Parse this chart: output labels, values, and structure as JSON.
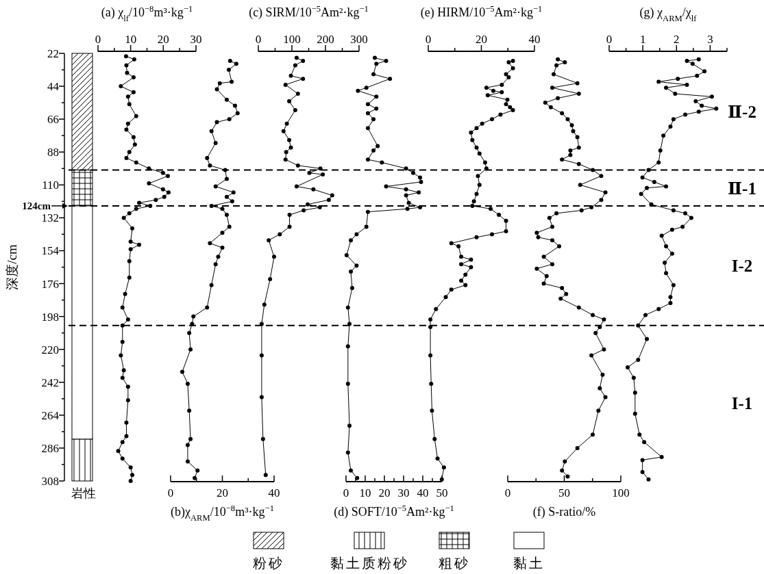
{
  "chart_data": [
    {
      "type": "bar",
      "categories": [
        null
      ],
      "tick_labels": "y",
      "xlabel": "岩性",
      "ylabel": "深度/cm",
      "ylim": [
        308,
        22
      ],
      "yticks": [
        22,
        44,
        66,
        88,
        110,
        132,
        154,
        176,
        198,
        220,
        242,
        264,
        286,
        308,
        {
          "value": 33,
          "label": null
        },
        {
          "value": 55,
          "label": null
        },
        {
          "value": 77,
          "label": null
        },
        {
          "value": 99,
          "label": null
        },
        {
          "value": 121,
          "label": null
        },
        {
          "value": 143,
          "label": null
        },
        {
          "value": 165,
          "label": null
        },
        {
          "value": 187,
          "label": null
        },
        {
          "value": 209,
          "label": null
        },
        {
          "value": 231,
          "label": null
        },
        {
          "value": 253,
          "label": null
        },
        {
          "value": 275,
          "label": null
        },
        {
          "value": 297,
          "label": null
        }
      ],
      "series": [
        {
          "name": "粉砂",
          "color": "#000000",
          "base": [
            22
          ],
          "values": [
            78
          ]
        },
        {
          "name": "黏土质粉砂",
          "color": "#000000",
          "base": [
            280
          ],
          "values": [
            28
          ]
        },
        {
          "name": "粗砂",
          "color": "#000000",
          "base": [
            100
          ],
          "values": [
            24
          ]
        },
        {
          "name": "黏土",
          "color": "#000000",
          "base": [
            124
          ],
          "values": [
            156
          ]
        }
      ],
      "legend": "bottom",
      "ref_lines": [
        {
          "axis": "y",
          "value": 100,
          "line_style": "dashed"
        },
        {
          "axis": "y",
          "value": 124,
          "label": "124cm",
          "line_style": "dashed"
        },
        {
          "axis": "y",
          "value": 204,
          "line_style": "dashed"
        }
      ],
      "annotations": [
        "Ⅱ-2",
        "Ⅱ-1",
        "I-2",
        "I-1"
      ]
    },
    {
      "type": "line",
      "xlabel": "(a) χ$_{lf}$/10$^{−8}$m³·kg$^{−1}$",
      "xlim": [
        0,
        30
      ],
      "xticks": [
        0,
        10,
        20,
        30,
        {
          "value": 5,
          "label": null
        },
        {
          "value": 15,
          "label": null
        },
        {
          "value": 25,
          "label": null
        }
      ],
      "ylim": [
        308,
        22
      ],
      "tick_labels": "x",
      "marker": "circle",
      "line_style": "solid",
      "series": [
        {
          "color": "#000000",
          "x": [
            8.6,
            11.1,
            8.7,
            8.9,
            10.9,
            7.0,
            10.9,
            9.2,
            9.6,
            11.7,
            9.2,
            8.7,
            10.9,
            11.3,
            9.6,
            8.7,
            11.7,
            15.6,
            19.9,
            21.4,
            15.6,
            19.9,
            21.6,
            20.3,
            17.7,
            12.6,
            16.0,
            11.7,
            9.6,
            7.9,
            10.5,
            10.0,
            12.6,
            10.0,
            9.6,
            9.6,
            8.3,
            7.5,
            9.2,
            7.5,
            7.5,
            7.0,
            7.9,
            7.5,
            9.2,
            9.2,
            8.7,
            8.7,
            7.5,
            6.2,
            7.5,
            10.0,
            10.5,
            10.0
          ],
          "values": [
            24,
            26,
            30,
            35,
            38,
            44,
            48,
            51,
            56,
            64,
            69,
            73,
            78,
            83,
            88,
            92,
            95,
            99,
            102,
            104,
            109,
            113,
            115,
            118,
            120,
            122,
            124,
            126,
            129,
            132,
            139,
            148,
            150,
            153,
            161,
            172,
            183,
            192,
            200,
            204,
            215,
            224,
            234,
            239,
            245,
            254,
            269,
            278,
            282,
            288,
            293,
            299,
            304,
            308
          ]
        }
      ]
    },
    {
      "type": "line",
      "xlabel": "(b)χ$_{ARM}$/10$^{−8}$m³·kg$^{−1}$",
      "xlim": [
        0,
        40
      ],
      "xticks": [
        0,
        20,
        40,
        {
          "value": 10,
          "label": null
        },
        {
          "value": 30,
          "label": null
        }
      ],
      "ylim": [
        308,
        22
      ],
      "tick_labels": "x",
      "marker": "circle",
      "line_style": "solid",
      "series": [
        {
          "color": "#000000",
          "x": [
            23.0,
            25.4,
            22.5,
            23.6,
            19.0,
            17.9,
            21.7,
            24.9,
            25.9,
            22.7,
            17.9,
            15.8,
            17.4,
            14.1,
            15.2,
            21.1,
            21.7,
            17.4,
            24.3,
            21.7,
            23.8,
            15.8,
            20.0,
            21.7,
            22.7,
            20.0,
            15.2,
            20.0,
            18.4,
            17.4,
            15.8,
            14.1,
            8.8,
            8.3,
            7.2,
            7.7,
            4.5,
            6.6,
            7.2,
            7.7,
            6.6,
            6.6,
            10.4,
            9.3
          ],
          "values": [
            27,
            29,
            33,
            41,
            42,
            46,
            53,
            57,
            62,
            66,
            68,
            74,
            82,
            92,
            97,
            100,
            106,
            111,
            115,
            118,
            121,
            124,
            126,
            130,
            138,
            142,
            149,
            152,
            158,
            163,
            177,
            192,
            198,
            203,
            209,
            220,
            235,
            243,
            261,
            280,
            284,
            295,
            301,
            306
          ]
        }
      ]
    },
    {
      "type": "line",
      "xlabel": "(c) SIRM/10$^{−5}$Am²·kg$^{−1}$",
      "xlim": [
        0,
        300
      ],
      "xticks": [
        0,
        100,
        200,
        300,
        {
          "value": 50,
          "label": null
        },
        {
          "value": 150,
          "label": null
        },
        {
          "value": 250,
          "label": null
        }
      ],
      "ylim": [
        308,
        22
      ],
      "tick_labels": "x",
      "marker": "circle",
      "line_style": "solid",
      "series": [
        {
          "color": "#000000",
          "x": [
            114,
            133,
            110,
            97,
            133,
            81,
            118,
            92,
            110,
            85,
            75,
            92,
            97,
            83,
            81,
            118,
            185,
            152,
            192,
            114,
            164,
            220,
            210,
            147,
            183,
            135,
            93,
            93,
            64,
            31,
            47,
            35,
            18,
            10,
            10,
            10,
            14,
            22
          ],
          "values": [
            25,
            27,
            30,
            37,
            39,
            43,
            49,
            54,
            60,
            69,
            74,
            80,
            85,
            88,
            93,
            97,
            99,
            102,
            103,
            111,
            113,
            117,
            120,
            123,
            125,
            127,
            130,
            138,
            143,
            147,
            158,
            173,
            190,
            203,
            224,
            252,
            280,
            304
          ]
        }
      ]
    },
    {
      "type": "line",
      "xlabel": "(d) SOFT/10$^{−5}$Am²·kg$^{−1}$",
      "xlim": [
        0,
        50
      ],
      "xticks": [
        0,
        10,
        20,
        30,
        40,
        50,
        {
          "value": 5,
          "label": null
        },
        {
          "value": 15,
          "label": null
        },
        {
          "value": 25,
          "label": null
        },
        {
          "value": 35,
          "label": null
        },
        {
          "value": 45,
          "label": null
        }
      ],
      "ylim": [
        308,
        22
      ],
      "tick_labels": "x",
      "marker": "circle",
      "line_style": "solid",
      "series": [
        {
          "color": "#000000",
          "x": [
            15.0,
            20.9,
            15.8,
            14.3,
            22.9,
            10.6,
            6.2,
            15.8,
            11.4,
            15.8,
            11.4,
            14.3,
            11.4,
            16.5,
            14.3,
            11.4,
            18.7,
            31.3,
            35.0,
            38.6,
            39.1,
            20.9,
            31.3,
            37.9,
            31.3,
            32.7,
            38.6,
            32.0,
            11.4,
            10.6,
            5.5,
            2.5,
            0.3,
            5.5,
            2.5,
            3.2,
            1.0,
            1.8,
            1.0,
            1.0,
            1.8,
            1.0,
            2.5,
            5.8
          ],
          "values": [
            25,
            27,
            29,
            36,
            39,
            45,
            47,
            51,
            56,
            59,
            62,
            66,
            72,
            84,
            87,
            93,
            95,
            99,
            102,
            105,
            108,
            111,
            113,
            115,
            117,
            122,
            125,
            126,
            128,
            138,
            143,
            147,
            157,
            164,
            168,
            179,
            192,
            203,
            218,
            243,
            271,
            289,
            301,
            306
          ]
        }
      ]
    },
    {
      "type": "line",
      "xlabel": "(e) HIRM/10$^{−5}$Am²·kg$^{−1}$",
      "xlim": [
        0,
        40
      ],
      "xticks": [
        0,
        20,
        40,
        {
          "value": 10,
          "label": null
        },
        {
          "value": 30,
          "label": null
        }
      ],
      "ylim": [
        308,
        22
      ],
      "tick_labels": "x",
      "marker": "circle",
      "line_style": "solid",
      "series": [
        {
          "color": "#000000",
          "x": [
            31.9,
            30.3,
            31.9,
            29.3,
            30.3,
            27.7,
            21.9,
            24.5,
            27.7,
            22.4,
            29.8,
            29.3,
            30.8,
            31.9,
            27.2,
            24.0,
            20.3,
            18.2,
            16.1,
            16.6,
            18.2,
            19.3,
            21.4,
            21.9,
            18.7,
            19.3,
            18.2,
            17.2,
            16.6,
            23.5,
            26.6,
            29.3,
            29.3,
            24.0,
            18.2,
            8.7,
            11.4,
            12.4,
            16.1,
            12.4,
            16.1,
            14.0,
            12.4,
            14.0,
            8.7,
            6.6,
            2.9,
            0.8,
            0.8,
            0.8,
            1.1,
            1.4,
            2.4,
            3.5,
            5.9,
            5.1
          ],
          "values": [
            27,
            28,
            32,
            36,
            38,
            43,
            45,
            47,
            48,
            50,
            53,
            56,
            58,
            60,
            63,
            66,
            69,
            72,
            75,
            80,
            85,
            89,
            95,
            99,
            104,
            110,
            116,
            121,
            124,
            126,
            130,
            134,
            141,
            143,
            145,
            149,
            151,
            158,
            160,
            163,
            165,
            170,
            174,
            177,
            180,
            185,
            193,
            200,
            205,
            224,
            243,
            261,
            280,
            293,
            299,
            307
          ]
        }
      ]
    },
    {
      "type": "line",
      "xlabel": "(f) S-ratio/%",
      "xlim": [
        0,
        100
      ],
      "xticks": [
        0,
        50,
        100,
        {
          "value": 25,
          "label": null
        },
        {
          "value": 75,
          "label": null
        }
      ],
      "ylim": [
        308,
        22
      ],
      "tick_labels": "x",
      "marker": "circle",
      "line_style": "solid",
      "series": [
        {
          "color": "#000000",
          "x": [
            44.3,
            50.5,
            43.1,
            40.6,
            61.6,
            39.4,
            62.9,
            44.3,
            33.2,
            38.1,
            48.0,
            53.0,
            56.7,
            57.9,
            61.6,
            62.9,
            55.4,
            55.4,
            48.0,
            62.9,
            75.2,
            82.7,
            64.1,
            86.4,
            82.7,
            74.0,
            65.3,
            43.1,
            36.9,
            39.4,
            25.7,
            27.0,
            39.4,
            45.5,
            31.9,
            39.4,
            25.7,
            34.4,
            31.9,
            48.0,
            51.7,
            46.8,
            62.9,
            75.2,
            85.1,
            81.4,
            77.7,
            85.1,
            74.0,
            83.9,
            81.4,
            86.4,
            80.2,
            75.2,
            61.6,
            50.5,
            48.0,
            53.0
          ],
          "values": [
            26,
            28,
            30,
            36,
            42,
            45,
            49,
            52,
            55,
            58,
            62,
            66,
            70,
            74,
            78,
            85,
            87,
            90,
            93,
            96,
            100,
            104,
            110,
            115,
            120,
            125,
            127,
            129,
            132,
            138,
            142,
            145,
            147,
            151,
            158,
            163,
            166,
            171,
            176,
            179,
            183,
            186,
            192,
            197,
            200,
            205,
            209,
            220,
            224,
            237,
            246,
            252,
            261,
            277,
            286,
            295,
            301,
            305
          ]
        }
      ]
    },
    {
      "type": "line",
      "xlabel": "(g) χ$_{ARM}$/χ$_{lf}$",
      "xlim": [
        0,
        3.5
      ],
      "xticks": [
        0,
        1,
        2,
        3,
        {
          "value": 0.5,
          "label": null
        },
        {
          "value": 1.5,
          "label": null
        },
        {
          "value": 2.5,
          "label": null
        },
        {
          "value": 3.5,
          "label": null
        }
      ],
      "ylim": [
        308,
        22
      ],
      "tick_labels": "x",
      "marker": "circle",
      "line_style": "solid",
      "series": [
        {
          "color": "#000000",
          "x": [
            2.66,
            2.31,
            2.48,
            2.83,
            2.61,
            2.04,
            1.47,
            2.31,
            1.69,
            1.96,
            3.05,
            2.57,
            2.75,
            3.18,
            2.66,
            2.26,
            1.91,
            1.82,
            1.61,
            1.52,
            1.47,
            1.17,
            0.99,
            1.34,
            1.69,
            1.12,
            0.95,
            1.25,
            1.91,
            2.26,
            2.44,
            2.18,
            1.87,
            1.56,
            1.69,
            1.87,
            1.65,
            1.69,
            1.91,
            1.82,
            1.82,
            1.47,
            1.08,
            0.86,
            1.12,
            0.86,
            0.55,
            0.73,
            0.77,
            0.77,
            0.9,
            1.04,
            1.56,
            0.99,
            0.99,
            1.17
          ],
          "values": [
            26,
            27,
            29,
            34,
            37,
            39,
            41,
            43,
            45,
            49,
            51,
            54,
            57,
            59,
            61,
            63,
            66,
            71,
            77,
            87,
            95,
            100,
            105,
            108,
            111,
            112,
            116,
            123,
            127,
            129,
            132,
            138,
            140,
            144,
            151,
            156,
            162,
            169,
            177,
            185,
            189,
            193,
            197,
            204,
            213,
            227,
            232,
            239,
            249,
            263,
            277,
            282,
            292,
            294,
            302,
            307
          ]
        }
      ]
    }
  ]
}
